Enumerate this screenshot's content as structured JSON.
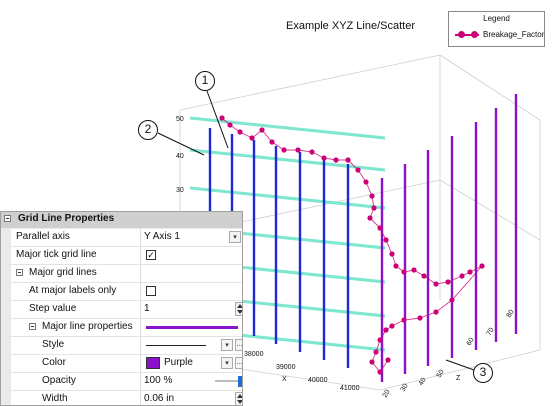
{
  "plot": {
    "title": "Example XYZ Line/Scatter",
    "legend_title": "Legend",
    "legend_series": "Breakage_Factor",
    "series_color": "#cc0077",
    "grid_line_color": "#7fe6cf",
    "blue_drop_color": "#1f2ad6",
    "purple_drop_color": "#8a12c8",
    "y_tick_labels": [
      "50",
      "40",
      "30",
      "20"
    ],
    "x_tick_labels": [
      "38000",
      "39000",
      "40000",
      "41000"
    ],
    "x_label": "X",
    "z_tick_labels": [
      "20",
      "30",
      "40",
      "50",
      "60",
      "70",
      "80"
    ],
    "z_label": "Z",
    "callouts": [
      "1",
      "2",
      "3"
    ]
  },
  "panel": {
    "title": "Grid Line Properties",
    "rows": {
      "parallel_axis": {
        "label": "Parallel axis",
        "value": "Y Axis 1"
      },
      "major_tick": {
        "label": "Major tick grid line"
      },
      "major_grid": {
        "label": "Major grid lines"
      },
      "major_labels_only": {
        "label": "At major labels only"
      },
      "step_value": {
        "label": "Step value",
        "value": "1"
      },
      "major_line_props": {
        "label": "Major line properties"
      },
      "style": {
        "label": "Style"
      },
      "color": {
        "label": "Color",
        "value": "Purple"
      },
      "opacity": {
        "label": "Opacity",
        "value": "100 %"
      },
      "width": {
        "label": "Width",
        "value": "0.06 in"
      }
    },
    "line_color": "#8a12c8",
    "check_mark": "✓",
    "dots_label": "..."
  }
}
